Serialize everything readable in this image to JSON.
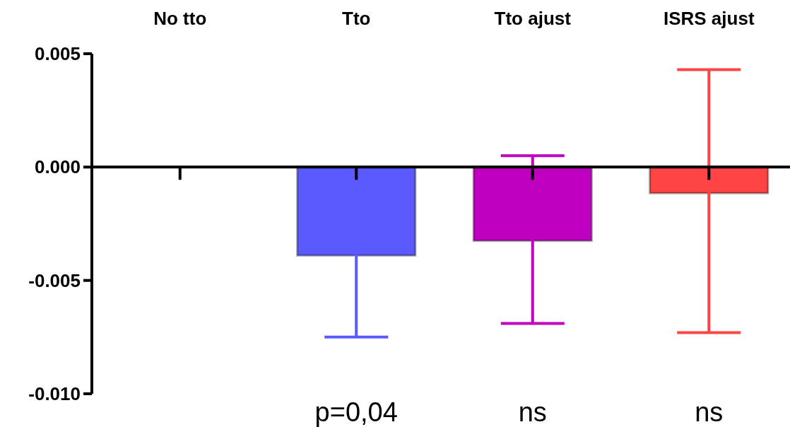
{
  "chart_data": {
    "type": "bar",
    "categories": [
      "No tto",
      "Tto",
      "Tto ajust",
      "ISRS ajust"
    ],
    "values": [
      0,
      -0.0039,
      -0.00325,
      -0.00115
    ],
    "colors": [
      "#5a5aff",
      "#5a5aff",
      "#c000c0",
      "#ff4444"
    ],
    "errors": [
      null,
      [
        -0.0075,
        -0.0002
      ],
      [
        -0.0069,
        0.0005
      ],
      [
        -0.0073,
        0.0043
      ]
    ],
    "ylim": [
      -0.01,
      0.005
    ],
    "yticks": [
      {
        "value": 0.005,
        "label": "0.005"
      },
      {
        "value": 0,
        "label": "0.000"
      },
      {
        "value": -0.005,
        "label": "-0.005"
      },
      {
        "value": -0.01,
        "label": "-0.010"
      }
    ],
    "annotations": [
      "p=0,04",
      "ns",
      "ns"
    ]
  }
}
